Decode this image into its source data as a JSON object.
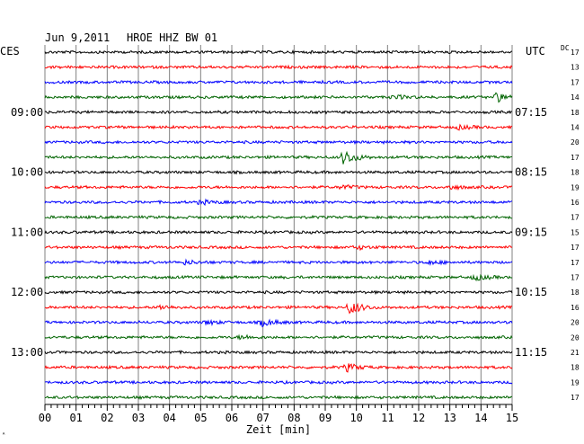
{
  "header": {
    "date": "Jun 9,2011",
    "station": "HROE HHZ BW 01",
    "left_zone": "CES",
    "right_zone": "UTC",
    "dc_label": "DC"
  },
  "x_axis": {
    "label": "Zeit [min]",
    "ticks": [
      "00",
      "01",
      "02",
      "03",
      "04",
      "05",
      "06",
      "07",
      "08",
      "09",
      "10",
      "11",
      "12",
      "13",
      "14",
      "15"
    ],
    "range": [
      0,
      15
    ]
  },
  "colors": {
    "trace_cycle": [
      "#000000",
      "#ff0000",
      "#0000ff",
      "#006400"
    ],
    "grid": "#808080",
    "background": "#ffffff"
  },
  "chart_data": {
    "type": "line",
    "title": "Jun 9,2011   HROE HHZ BW 01",
    "xlabel": "Zeit [min]",
    "xlim": [
      0,
      15
    ],
    "traces_per_hour": 4,
    "trace_count": 24,
    "left_time_labels": [
      {
        "row": 4,
        "text": "09:00"
      },
      {
        "row": 8,
        "text": "10:00"
      },
      {
        "row": 12,
        "text": "11:00"
      },
      {
        "row": 16,
        "text": "12:00"
      },
      {
        "row": 20,
        "text": "13:00"
      }
    ],
    "right_time_labels": [
      {
        "row": 4,
        "text": "07:15"
      },
      {
        "row": 8,
        "text": "08:15"
      },
      {
        "row": 12,
        "text": "09:15"
      },
      {
        "row": 16,
        "text": "10:15"
      },
      {
        "row": 20,
        "text": "11:15"
      }
    ],
    "dc_values": [
      "17",
      "13",
      "17",
      "14",
      "18",
      "14",
      "20",
      "17",
      "18",
      "19",
      "16",
      "17",
      "15",
      "17",
      "17",
      "17",
      "18",
      "16",
      "20",
      "20",
      "21",
      "18",
      "19",
      "17"
    ],
    "events": [
      {
        "row": 3,
        "minute": 14.5,
        "amplitude": 5
      },
      {
        "row": 3,
        "minute": 11.2,
        "amplitude": 2
      },
      {
        "row": 5,
        "minute": 13.3,
        "amplitude": 2
      },
      {
        "row": 7,
        "minute": 9.6,
        "amplitude": 8
      },
      {
        "row": 9,
        "minute": 9.5,
        "amplitude": 2
      },
      {
        "row": 9,
        "minute": 13.0,
        "amplitude": 2
      },
      {
        "row": 10,
        "minute": 5.0,
        "amplitude": 2
      },
      {
        "row": 13,
        "minute": 10.0,
        "amplitude": 2
      },
      {
        "row": 14,
        "minute": 4.5,
        "amplitude": 2
      },
      {
        "row": 14,
        "minute": 12.3,
        "amplitude": 2
      },
      {
        "row": 15,
        "minute": 13.8,
        "amplitude": 3
      },
      {
        "row": 17,
        "minute": 9.8,
        "amplitude": 7
      },
      {
        "row": 17,
        "minute": 3.7,
        "amplitude": 2
      },
      {
        "row": 18,
        "minute": 7.0,
        "amplitude": 4
      },
      {
        "row": 18,
        "minute": 5.2,
        "amplitude": 2
      },
      {
        "row": 19,
        "minute": 6.3,
        "amplitude": 2
      },
      {
        "row": 21,
        "minute": 9.7,
        "amplitude": 4
      }
    ]
  }
}
